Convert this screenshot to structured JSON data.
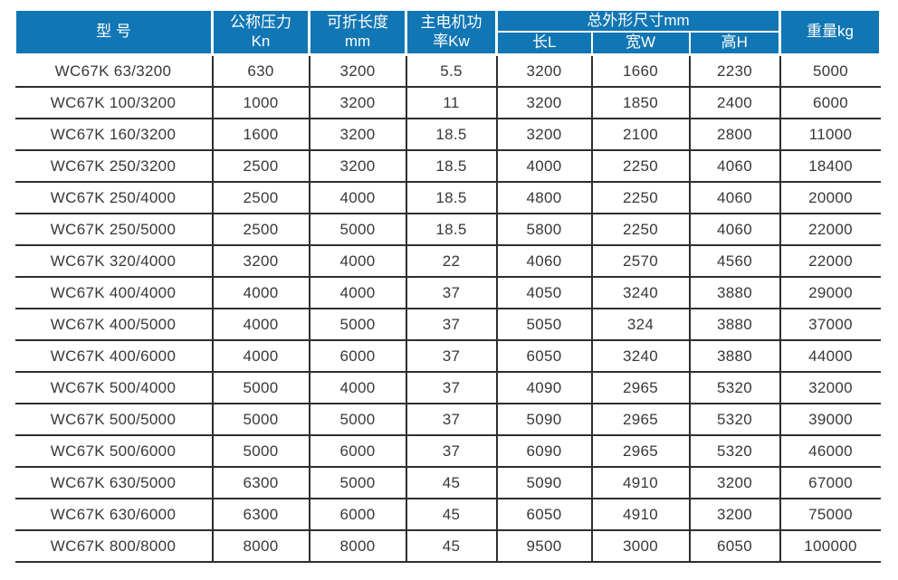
{
  "colors": {
    "header_background": "#1176b4",
    "header_text": "#ffffff",
    "grid_line": "#2e2e2e",
    "cell_text": "#383838",
    "page_background": "#ffffff"
  },
  "table": {
    "header": {
      "model": "型 号",
      "pressure": {
        "line1": "公称压力",
        "line2": "Kn"
      },
      "fold_length": {
        "line1": "可折长度",
        "line2": "mm"
      },
      "motor_power": {
        "line1": "主电机功",
        "line2": "率Kw"
      },
      "dimensions_group": "总外形尺寸mm",
      "dimensions_sub": [
        "长L",
        "宽W",
        "高H"
      ],
      "weight": "重量kg"
    },
    "column_keys": [
      "model",
      "pressure-kn",
      "fold-length-mm",
      "motor-power-kw",
      "length-l",
      "width-w",
      "height-h",
      "weight-kg"
    ],
    "rows": [
      [
        "WC67K 63/3200",
        "630",
        "3200",
        "5.5",
        "3200",
        "1660",
        "2230",
        "5000"
      ],
      [
        "WC67K 100/3200",
        "1000",
        "3200",
        "11",
        "3200",
        "1850",
        "2400",
        "6000"
      ],
      [
        "WC67K 160/3200",
        "1600",
        "3200",
        "18.5",
        "3200",
        "2100",
        "2800",
        "11000"
      ],
      [
        "WC67K 250/3200",
        "2500",
        "3200",
        "18.5",
        "4000",
        "2250",
        "4060",
        "18400"
      ],
      [
        "WC67K 250/4000",
        "2500",
        "4000",
        "18.5",
        "4800",
        "2250",
        "4060",
        "20000"
      ],
      [
        "WC67K 250/5000",
        "2500",
        "5000",
        "18.5",
        "5800",
        "2250",
        "4060",
        "22000"
      ],
      [
        "WC67K 320/4000",
        "3200",
        "4000",
        "22",
        "4060",
        "2570",
        "4560",
        "22000"
      ],
      [
        "WC67K 400/4000",
        "4000",
        "4000",
        "37",
        "4050",
        "3240",
        "3880",
        "29000"
      ],
      [
        "WC67K 400/5000",
        "4000",
        "5000",
        "37",
        "5050",
        "324",
        "3880",
        "37000"
      ],
      [
        "WC67K 400/6000",
        "4000",
        "6000",
        "37",
        "6050",
        "3240",
        "3880",
        "44000"
      ],
      [
        "WC67K 500/4000",
        "5000",
        "4000",
        "37",
        "4090",
        "2965",
        "5320",
        "32000"
      ],
      [
        "WC67K 500/5000",
        "5000",
        "5000",
        "37",
        "5090",
        "2965",
        "5320",
        "39000"
      ],
      [
        "WC67K 500/6000",
        "5000",
        "6000",
        "37",
        "6090",
        "2965",
        "5320",
        "46000"
      ],
      [
        "WC67K 630/5000",
        "6300",
        "5000",
        "45",
        "5090",
        "4910",
        "3200",
        "67000"
      ],
      [
        "WC67K 630/6000",
        "6300",
        "6000",
        "45",
        "6050",
        "4910",
        "3200",
        "75000"
      ],
      [
        "WC67K 800/8000",
        "8000",
        "8000",
        "45",
        "9500",
        "3000",
        "6050",
        "100000"
      ]
    ]
  }
}
